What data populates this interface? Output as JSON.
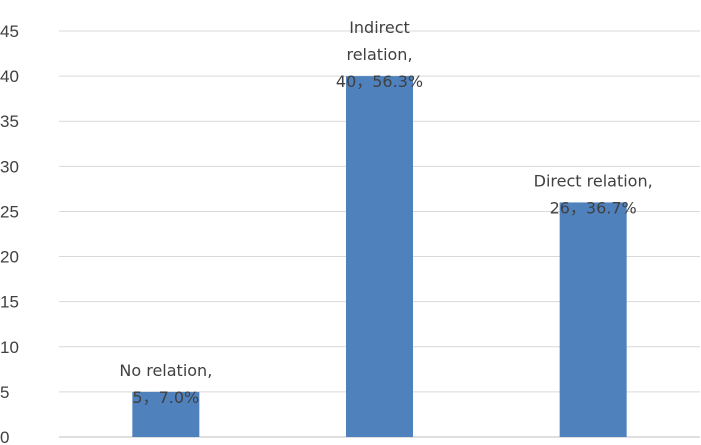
{
  "chart_data": {
    "type": "bar",
    "categories": [
      "No relation",
      "Indirect relation",
      "Direct relation"
    ],
    "values": [
      5,
      40,
      26
    ],
    "data_labels": [
      [
        "No relation,",
        "5，7.0%"
      ],
      [
        "Indirect",
        "relation,",
        "40，56.3%"
      ],
      [
        "Direct relation,",
        "26，36.7%"
      ]
    ],
    "title": "",
    "xlabel": "",
    "ylabel": "",
    "ylim": [
      0,
      45
    ],
    "yticks": [
      "0",
      "5",
      "10",
      "15",
      "20",
      "25",
      "30",
      "35",
      "40",
      "45"
    ],
    "grid": true,
    "legend": "none",
    "bar_color": "#4f81bd"
  }
}
